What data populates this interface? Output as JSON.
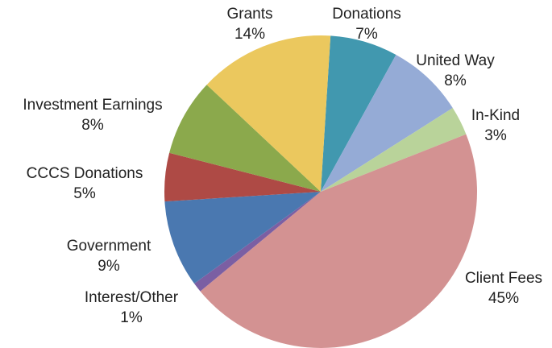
{
  "chart_data": {
    "type": "pie",
    "categories": [
      "Donations",
      "United Way",
      "In-Kind",
      "Client Fees",
      "Interest/Other",
      "Government",
      "CCCS Donations",
      "Investment Earnings",
      "Grants"
    ],
    "values": [
      7,
      8,
      3,
      45,
      1,
      9,
      5,
      8,
      14
    ],
    "value_labels": [
      "7%",
      "8%",
      "3%",
      "45%",
      "1%",
      "9%",
      "5%",
      "8%",
      "14%"
    ],
    "colors": [
      "#4198af",
      "#95abd6",
      "#b9d39a",
      "#d39292",
      "#7b5fa3",
      "#4a78b0",
      "#ae4a45",
      "#8ba94c",
      "#ebc85e"
    ]
  }
}
